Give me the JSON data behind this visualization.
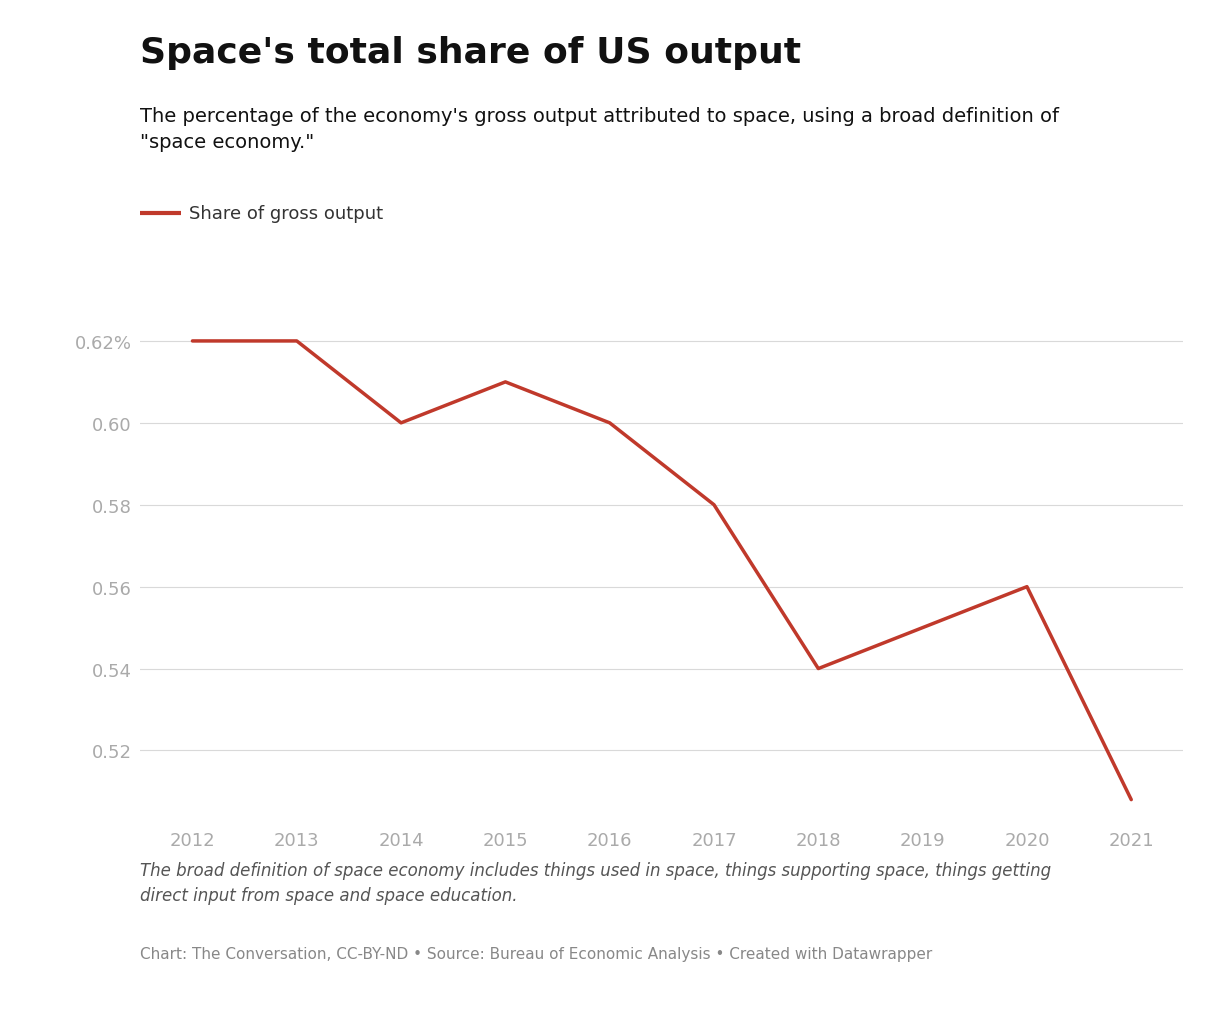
{
  "title": "Space's total share of US output",
  "subtitle": "The percentage of the economy's gross output attributed to space, using a broad definition of\n\"space economy.\"",
  "legend_label": "Share of gross output",
  "footnote": "The broad definition of space economy includes things used in space, things supporting space, things getting\ndirect input from space and space education.",
  "source": "Chart: The Conversation, CC-BY-ND • Source: Bureau of Economic Analysis • Created with Datawrapper",
  "years": [
    2012,
    2013,
    2014,
    2015,
    2016,
    2017,
    2018,
    2019,
    2020,
    2021
  ],
  "values": [
    0.62,
    0.62,
    0.6,
    0.61,
    0.6,
    0.58,
    0.54,
    0.55,
    0.56,
    0.508
  ],
  "line_color": "#c0392b",
  "line_width": 2.5,
  "yticks": [
    0.52,
    0.54,
    0.56,
    0.58,
    0.6,
    0.62
  ],
  "ytick_labels": [
    "0.52",
    "0.54",
    "0.56",
    "0.58",
    "0.60",
    "0.62%"
  ],
  "ylim": [
    0.503,
    0.635
  ],
  "background_color": "#ffffff",
  "grid_color": "#d9d9d9",
  "axis_label_color": "#aaaaaa",
  "title_fontsize": 26,
  "subtitle_fontsize": 14,
  "legend_fontsize": 13,
  "tick_fontsize": 13,
  "footnote_fontsize": 12,
  "source_fontsize": 11
}
